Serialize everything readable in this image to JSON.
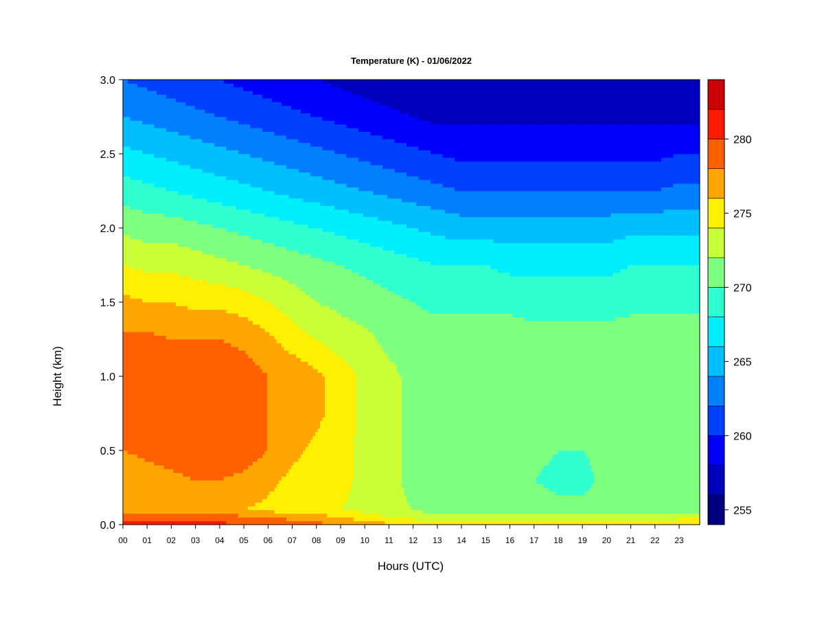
{
  "chart_data": {
    "type": "heatmap",
    "title": "Temperature (K) - 01/06/2022",
    "xlabel": "Hours (UTC)",
    "ylabel": "Height (km)",
    "x_ticks": [
      "00",
      "01",
      "02",
      "03",
      "04",
      "05",
      "06",
      "07",
      "08",
      "09",
      "10",
      "11",
      "12",
      "13",
      "14",
      "15",
      "16",
      "17",
      "18",
      "19",
      "20",
      "21",
      "22",
      "23"
    ],
    "y_ticks": [
      "0.0",
      "0.5",
      "1.0",
      "1.5",
      "2.0",
      "2.5",
      "3.0"
    ],
    "xlim": [
      0,
      23.85
    ],
    "ylim": [
      0,
      3.0
    ],
    "colorbar": {
      "ticks": [
        "255",
        "260",
        "265",
        "270",
        "275",
        "280"
      ],
      "levels": [
        254,
        256,
        258,
        260,
        262,
        264,
        266,
        268,
        270,
        272,
        274,
        276,
        278,
        280,
        282,
        284
      ],
      "colors": [
        "#00007F",
        "#0000BF",
        "#0000FF",
        "#0040FF",
        "#0080FF",
        "#00BFFF",
        "#00EFFF",
        "#30FFCF",
        "#7FFF7F",
        "#C8FF37",
        "#FFEF00",
        "#FFA500",
        "#FF6000",
        "#FF1A00",
        "#CC0000",
        "#800000"
      ]
    },
    "hours": [
      0,
      1,
      2,
      3,
      4,
      5,
      6,
      7,
      8,
      9,
      10,
      11,
      12,
      13,
      14,
      15,
      16,
      17,
      18,
      19,
      20,
      21,
      22,
      23,
      23.85
    ],
    "heights_km": [
      0.0,
      0.05,
      0.1,
      0.3,
      0.5,
      0.75,
      1.0,
      1.25,
      1.5,
      1.75,
      2.0,
      2.25,
      2.5,
      2.75,
      3.0
    ],
    "temperature_K": [
      [
        280.5,
        280.5,
        280.5,
        280.5,
        280.5,
        280.0,
        279.5,
        279.0,
        278.5,
        278.0,
        277.5,
        276.5,
        275.5,
        275.0,
        275.0,
        275.0,
        275.0,
        275.0,
        275.0,
        275.0,
        275.0,
        275.0,
        275.0,
        275.5,
        276.0
      ],
      [
        279.0,
        279.0,
        279.0,
        279.0,
        279.0,
        278.5,
        278.0,
        277.5,
        277.0,
        276.0,
        275.0,
        274.0,
        273.5,
        273.0,
        273.0,
        273.0,
        273.0,
        273.0,
        273.0,
        273.0,
        273.0,
        273.0,
        273.0,
        273.5,
        274.0
      ],
      [
        276.5,
        276.5,
        276.5,
        276.5,
        276.5,
        276.0,
        275.5,
        275.0,
        274.5,
        274.0,
        273.5,
        272.5,
        272.0,
        271.0,
        271.0,
        271.0,
        271.0,
        271.0,
        270.5,
        270.5,
        270.5,
        271.0,
        271.0,
        271.0,
        271.0
      ],
      [
        276.5,
        277.0,
        277.5,
        278.0,
        278.0,
        277.5,
        276.5,
        275.5,
        275.0,
        274.5,
        273.5,
        272.5,
        271.5,
        270.5,
        270.5,
        270.5,
        270.5,
        270.0,
        269.5,
        269.5,
        270.5,
        270.5,
        271.0,
        271.0,
        271.0
      ],
      [
        278.0,
        278.5,
        279.0,
        279.5,
        279.5,
        279.0,
        278.0,
        276.5,
        275.5,
        274.5,
        273.5,
        272.5,
        271.5,
        270.5,
        270.5,
        270.5,
        270.5,
        270.5,
        270.0,
        270.0,
        270.5,
        270.5,
        271.0,
        271.0,
        271.0
      ],
      [
        279.0,
        279.5,
        279.5,
        279.5,
        279.5,
        279.5,
        278.0,
        277.5,
        276.5,
        275.0,
        273.5,
        272.5,
        271.5,
        271.0,
        271.0,
        271.0,
        271.0,
        271.0,
        271.0,
        271.0,
        271.0,
        271.0,
        271.0,
        271.0,
        271.0
      ],
      [
        279.0,
        279.5,
        279.5,
        279.5,
        279.5,
        279.0,
        278.0,
        277.5,
        276.5,
        275.0,
        273.5,
        272.5,
        271.5,
        271.0,
        271.0,
        271.0,
        271.0,
        271.0,
        271.0,
        271.0,
        271.0,
        271.0,
        271.0,
        271.0,
        271.0
      ],
      [
        278.5,
        278.5,
        278.0,
        278.0,
        278.0,
        277.5,
        276.5,
        275.0,
        274.0,
        273.0,
        272.5,
        271.5,
        271.0,
        271.0,
        271.0,
        271.0,
        271.0,
        271.0,
        271.0,
        271.0,
        271.0,
        271.0,
        271.0,
        271.0,
        271.0
      ],
      [
        276.5,
        276.0,
        276.0,
        275.5,
        275.5,
        275.0,
        274.0,
        273.0,
        272.0,
        271.5,
        271.0,
        270.5,
        270.0,
        269.5,
        269.5,
        269.5,
        269.5,
        269.0,
        269.0,
        269.0,
        269.0,
        269.5,
        269.5,
        269.5,
        269.5
      ],
      [
        274.0,
        273.5,
        273.5,
        273.0,
        272.5,
        272.0,
        271.5,
        271.0,
        270.5,
        270.0,
        269.5,
        269.0,
        268.5,
        268.0,
        268.0,
        268.0,
        267.5,
        267.5,
        267.5,
        267.5,
        267.5,
        268.0,
        268.0,
        268.0,
        268.0
      ],
      [
        271.5,
        271.0,
        271.0,
        270.5,
        270.0,
        269.5,
        269.0,
        268.5,
        268.0,
        267.5,
        267.0,
        266.5,
        266.0,
        265.5,
        265.0,
        265.0,
        265.0,
        265.0,
        265.0,
        265.0,
        265.0,
        265.5,
        265.5,
        265.5,
        265.5
      ],
      [
        269.0,
        268.5,
        268.0,
        267.5,
        267.0,
        266.5,
        266.0,
        265.5,
        265.0,
        264.5,
        264.0,
        263.5,
        263.0,
        262.5,
        262.0,
        262.0,
        262.0,
        262.0,
        262.0,
        262.0,
        262.0,
        262.0,
        262.0,
        262.5,
        262.5
      ],
      [
        266.5,
        266.0,
        265.5,
        265.0,
        264.5,
        264.0,
        263.5,
        263.0,
        262.5,
        262.0,
        261.5,
        261.0,
        260.5,
        260.0,
        259.5,
        259.5,
        259.5,
        259.5,
        259.5,
        259.5,
        259.5,
        259.5,
        259.5,
        260.0,
        260.0
      ],
      [
        264.0,
        263.5,
        263.0,
        262.5,
        262.0,
        261.5,
        261.0,
        260.5,
        260.0,
        259.5,
        259.0,
        258.5,
        258.0,
        257.5,
        257.5,
        257.5,
        257.5,
        257.5,
        257.5,
        257.5,
        257.5,
        257.5,
        257.5,
        257.5,
        257.5
      ],
      [
        262.0,
        261.5,
        261.0,
        260.5,
        260.0,
        259.5,
        259.0,
        258.5,
        258.0,
        257.5,
        257.0,
        256.5,
        256.0,
        256.0,
        256.0,
        256.0,
        256.0,
        256.0,
        256.0,
        256.0,
        256.0,
        256.0,
        256.0,
        256.0,
        256.0
      ]
    ]
  }
}
